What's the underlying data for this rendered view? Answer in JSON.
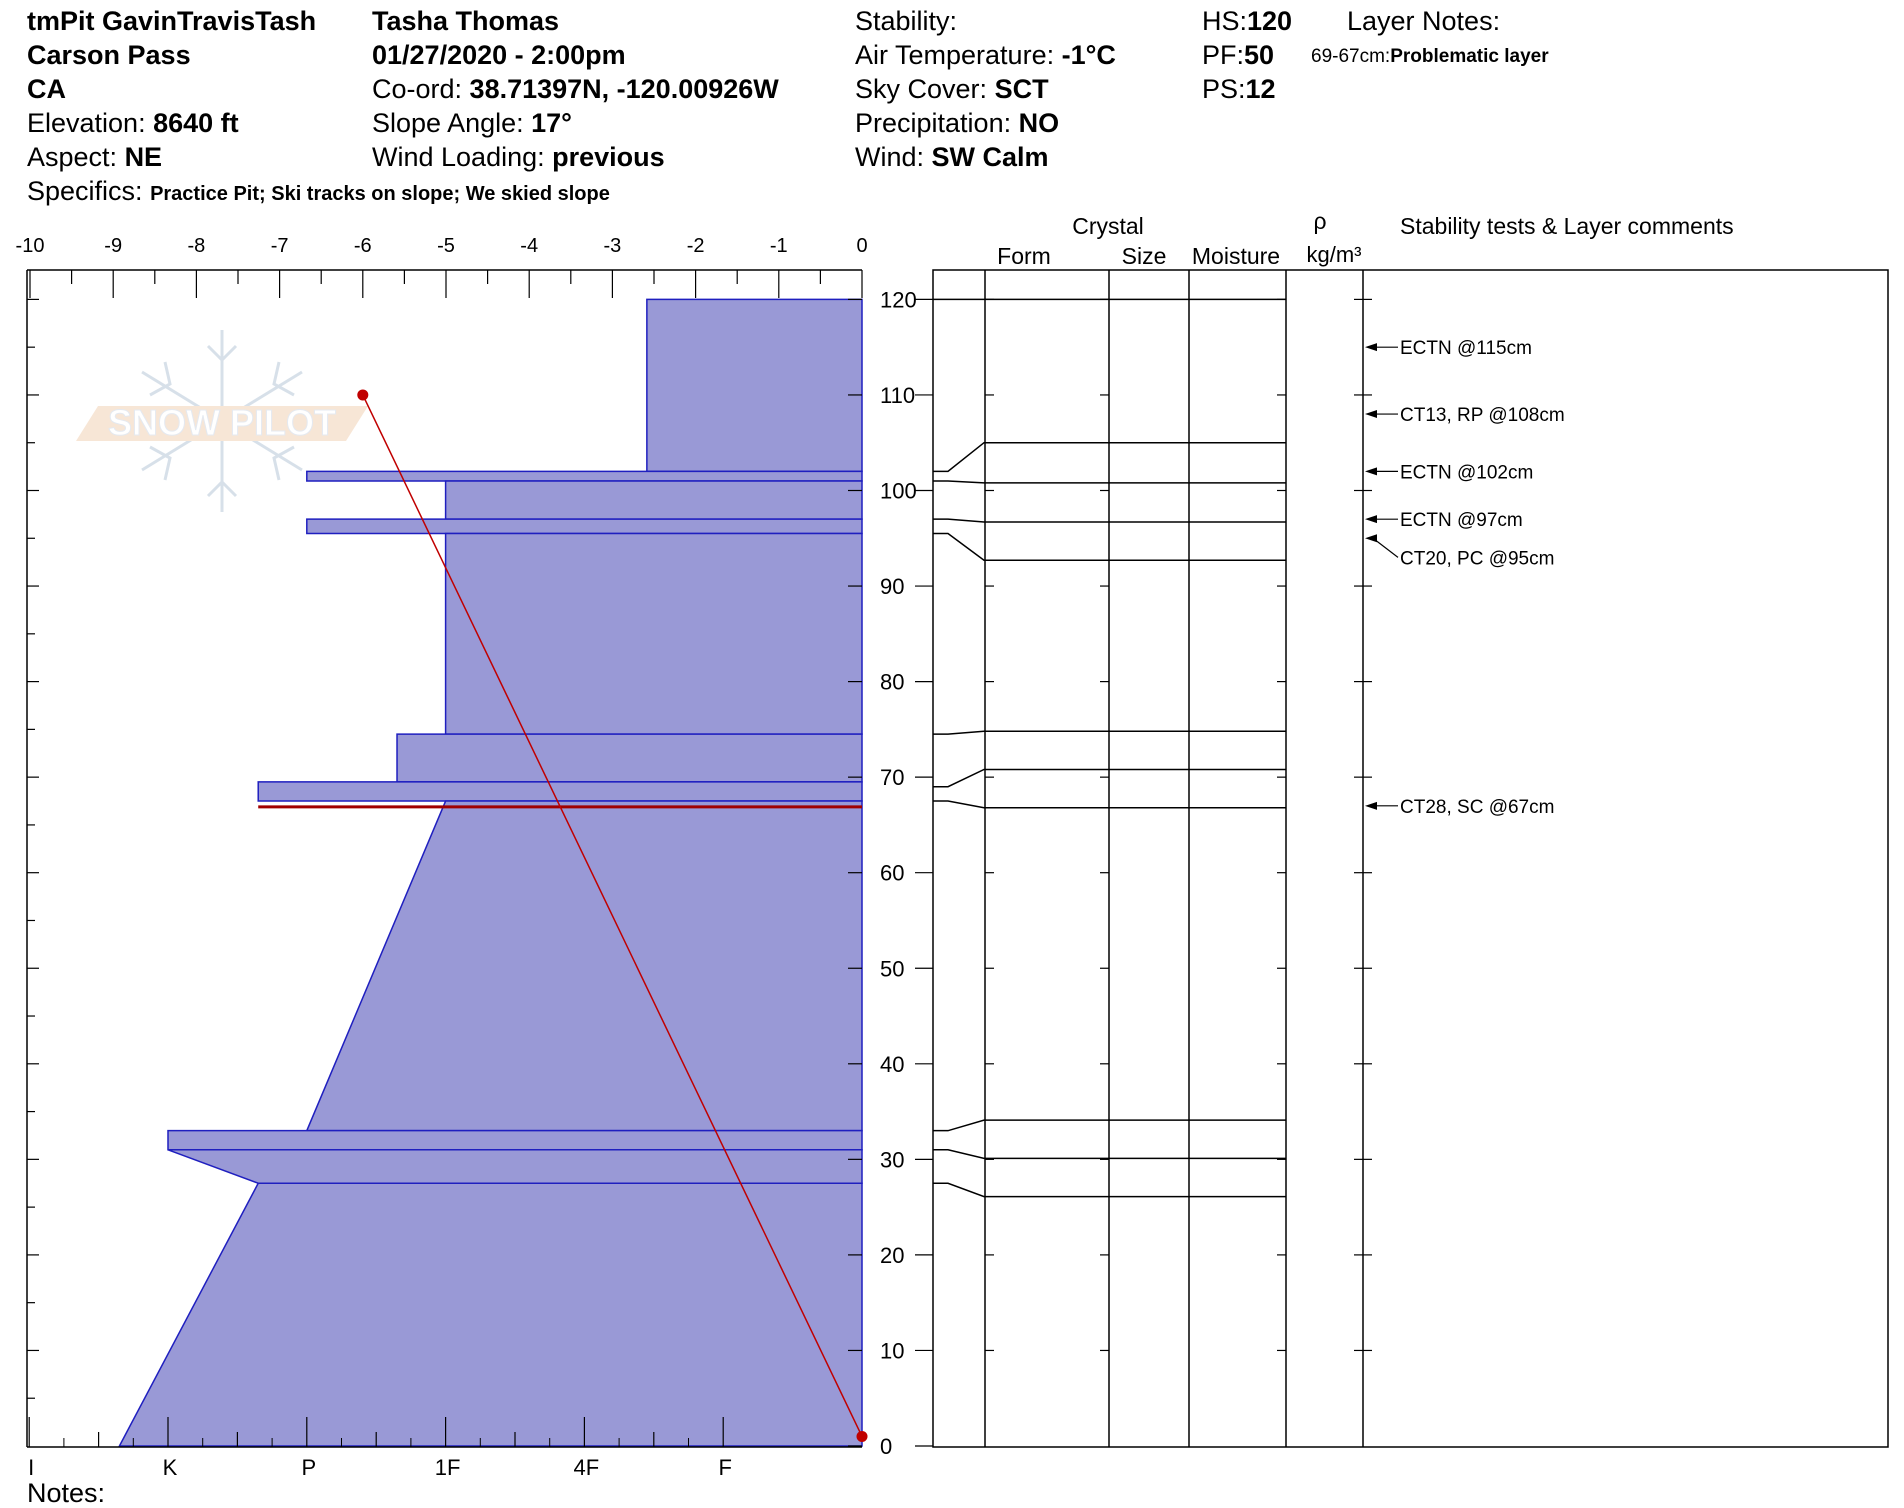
{
  "header": {
    "col1": {
      "pit_name": "tmPit GavinTravisTash",
      "location": "Carson Pass",
      "state": "CA",
      "elevation_label": "Elevation:",
      "elevation_value": "8640 ft",
      "aspect_label": "Aspect:",
      "aspect_value": "NE",
      "specifics_label": "Specifics:",
      "specifics_value": "Practice Pit; Ski tracks on slope; We skied slope"
    },
    "col2": {
      "observer": "Tasha Thomas",
      "datetime": "01/27/2020 - 2:00pm",
      "coord_label": "Co-ord:",
      "coord_value": "38.71397N, -120.00926W",
      "slope_label": "Slope Angle:",
      "slope_value": "17°",
      "wind_loading_label": "Wind Loading:",
      "wind_loading_value": "previous"
    },
    "col3": {
      "stability_label": "Stability:",
      "air_temp_label": "Air Temperature:",
      "air_temp_value": "-1°C",
      "sky_label": "Sky Cover:",
      "sky_value": "SCT",
      "precip_label": "Precipitation:",
      "precip_value": "NO",
      "wind_label": "Wind:",
      "wind_value": "SW Calm"
    },
    "col4": {
      "hs_label": "HS:",
      "hs_value": "120",
      "pf_label": "PF:",
      "pf_value": "50",
      "ps_label": "PS:",
      "ps_value": "12"
    },
    "layer_notes": {
      "label": "Layer Notes:",
      "range": "69-67cm:",
      "note": "Problematic layer"
    }
  },
  "watermark": {
    "text": "SNOW PILOT"
  },
  "notes_label": "Notes:",
  "table_headers": {
    "crystal": "Crystal",
    "form": "Form",
    "size": "Size",
    "moisture": "Moisture",
    "rho": "ρ",
    "density_unit": "kg/m³",
    "stability": "Stability tests & Layer comments"
  },
  "colors": {
    "hardness_fill": "#9999d6",
    "hardness_stroke": "#1f1fbf",
    "temp_line": "#c00000",
    "problem_layer": "#a00000"
  },
  "chart_data": {
    "type": "area",
    "temperature_axis": {
      "ticks": [
        -10,
        -9,
        -8,
        -7,
        -6,
        -5,
        -4,
        -3,
        -2,
        -1,
        0
      ],
      "range": [
        -10,
        0
      ]
    },
    "hardness_axis": {
      "labels": [
        "I",
        "K",
        "P",
        "1F",
        "4F",
        "F"
      ],
      "values": [
        6,
        5,
        4,
        3,
        2,
        1
      ]
    },
    "height_axis": {
      "range": [
        0,
        120
      ],
      "ticks": [
        0,
        10,
        20,
        30,
        40,
        50,
        60,
        70,
        80,
        90,
        100,
        110,
        120
      ]
    },
    "hardness_profile": [
      {
        "top": 120,
        "bottom": 102,
        "hardness": 1.55
      },
      {
        "top": 102,
        "bottom": 101,
        "hardness": 4.0
      },
      {
        "top": 101,
        "bottom": 97,
        "hardness": 3.0
      },
      {
        "top": 97,
        "bottom": 95.5,
        "hardness": 4.0
      },
      {
        "top": 95.5,
        "bottom": 74.5,
        "hardness": 3.0
      },
      {
        "top": 74.5,
        "bottom": 69.5,
        "hardness": 3.35
      },
      {
        "top": 69.5,
        "bottom": 67.5,
        "hardness": 4.35
      },
      {
        "top": 67.5,
        "bottom": 33,
        "hardness": 3.0,
        "hardness_bottom": 4.0
      },
      {
        "top": 33,
        "bottom": 31,
        "hardness": 5.0,
        "hardness_bottom": 5.0
      },
      {
        "top": 31,
        "bottom": 27.5,
        "hardness": 5.0,
        "hardness_bottom": 4.35
      },
      {
        "top": 27.5,
        "bottom": 0,
        "hardness": 4.35,
        "hardness_bottom": 5.35
      }
    ],
    "temperature_profile": [
      {
        "height": 110,
        "temp": -6.0
      },
      {
        "height": 1,
        "temp": 0.0
      }
    ],
    "problem_layer": {
      "top": 69,
      "bottom": 67
    },
    "layer_boundaries": [
      {
        "left": 102,
        "right": 105
      },
      {
        "left": 101,
        "right": 100.8
      },
      {
        "left": 97,
        "right": 96.7
      },
      {
        "left": 95.5,
        "right": 92.7
      },
      {
        "left": 74.5,
        "right": 74.8
      },
      {
        "left": 69,
        "right": 70.8
      },
      {
        "left": 67.5,
        "right": 66.8
      },
      {
        "left": 33,
        "right": 34.1
      },
      {
        "left": 31,
        "right": 30.1
      },
      {
        "left": 27.5,
        "right": 26.1
      }
    ],
    "stability_tests": [
      {
        "height": 115,
        "label": "ECTN @115cm"
      },
      {
        "height": 108,
        "label": "CT13, RP @108cm"
      },
      {
        "height": 102,
        "label": "ECTN @102cm"
      },
      {
        "height": 97,
        "label": "ECTN @97cm"
      },
      {
        "height": 95,
        "label": "CT20, PC @95cm",
        "label_height": 93
      },
      {
        "height": 67,
        "label": "CT28, SC @67cm"
      }
    ]
  }
}
